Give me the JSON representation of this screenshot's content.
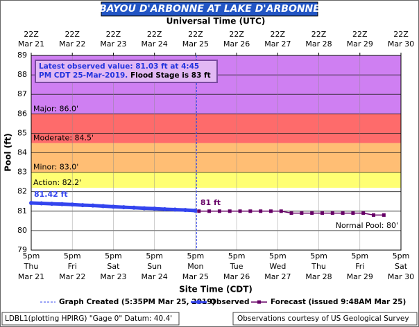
{
  "chart_data": {
    "type": "hydrograph",
    "title": "BAYOU D'ARBONNE AT LAKE D'ARBONNE",
    "x2_label": "Universal Time (UTC)",
    "x_label": "Site Time (CDT)",
    "y_label": "Pool (ft)",
    "xlim": [
      "2019-03-21T17:00",
      "2019-03-30T17:00"
    ],
    "ylim": [
      79,
      89
    ],
    "yticks": [
      79,
      80,
      81,
      82,
      83,
      84,
      85,
      86,
      87,
      88,
      89
    ],
    "grid": true,
    "xticks": [
      {
        "value": "2019-03-21T17:00",
        "label": [
          "5pm",
          "Thu",
          "Mar 21"
        ]
      },
      {
        "value": "2019-03-22T17:00",
        "label": [
          "5pm",
          "Fri",
          "Mar 22"
        ]
      },
      {
        "value": "2019-03-23T17:00",
        "label": [
          "5pm",
          "Sat",
          "Mar 23"
        ]
      },
      {
        "value": "2019-03-24T17:00",
        "label": [
          "5pm",
          "Sun",
          "Mar 24"
        ]
      },
      {
        "value": "2019-03-25T17:00",
        "label": [
          "5pm",
          "Mon",
          "Mar 25"
        ]
      },
      {
        "value": "2019-03-26T17:00",
        "label": [
          "5pm",
          "Tue",
          "Mar 26"
        ]
      },
      {
        "value": "2019-03-27T17:00",
        "label": [
          "5pm",
          "Wed",
          "Mar 27"
        ]
      },
      {
        "value": "2019-03-28T17:00",
        "label": [
          "5pm",
          "Thu",
          "Mar 28"
        ]
      },
      {
        "value": "2019-03-29T17:00",
        "label": [
          "5pm",
          "Fri",
          "Mar 29"
        ]
      },
      {
        "value": "2019-03-30T17:00",
        "label": [
          "5pm",
          "Sat",
          "Mar 30"
        ]
      }
    ],
    "x2ticks": [
      {
        "value": "2019-03-21T17:00",
        "label": [
          "22Z",
          "Mar 21"
        ]
      },
      {
        "value": "2019-03-22T17:00",
        "label": [
          "22Z",
          "Mar 22"
        ]
      },
      {
        "value": "2019-03-23T17:00",
        "label": [
          "22Z",
          "Mar 23"
        ]
      },
      {
        "value": "2019-03-24T17:00",
        "label": [
          "22Z",
          "Mar 24"
        ]
      },
      {
        "value": "2019-03-25T17:00",
        "label": [
          "22Z",
          "Mar 25"
        ]
      },
      {
        "value": "2019-03-26T17:00",
        "label": [
          "22Z",
          "Mar 26"
        ]
      },
      {
        "value": "2019-03-27T17:00",
        "label": [
          "22Z",
          "Mar 27"
        ]
      },
      {
        "value": "2019-03-28T17:00",
        "label": [
          "22Z",
          "Mar 28"
        ]
      },
      {
        "value": "2019-03-29T17:00",
        "label": [
          "22Z",
          "Mar 29"
        ]
      },
      {
        "value": "2019-03-30T17:00",
        "label": [
          "22Z",
          "Mar 30"
        ]
      }
    ],
    "thresholds": [
      {
        "label": "Major: 86.0'",
        "value": 86,
        "color": "#cf7ff2"
      },
      {
        "label": "Moderate: 84.5'",
        "value": 84.5,
        "color": "#fe6b6b"
      },
      {
        "label": "Minor: 83.0'",
        "value": 83,
        "color": "#ffbe74"
      },
      {
        "label": "Action: 82.2'",
        "value": 82.2,
        "color": "#ffff73"
      }
    ],
    "normal_pool": {
      "label": "Normal Pool: 80'",
      "value": 80
    },
    "graph_created": {
      "x": "2019-03-25T17:35",
      "label": "Graph Created (5:35PM Mar 25, 2019)"
    },
    "latest_observed": "Latest observed value: 81.03 ft at 4:45 PM CDT 25-Mar-2019.",
    "flood_stage_note": "Flood Stage is 83 ft",
    "series": [
      {
        "name": "Observed",
        "color": "#3344ee",
        "x": [
          "2019-03-21T17:00",
          "2019-03-21T23:00",
          "2019-03-22T05:00",
          "2019-03-22T11:00",
          "2019-03-22T17:00",
          "2019-03-22T23:00",
          "2019-03-23T05:00",
          "2019-03-23T11:00",
          "2019-03-23T17:00",
          "2019-03-23T23:00",
          "2019-03-24T05:00",
          "2019-03-24T11:00",
          "2019-03-24T17:00",
          "2019-03-24T23:00",
          "2019-03-25T05:00",
          "2019-03-25T11:00",
          "2019-03-25T16:45"
        ],
        "values": [
          81.42,
          81.4,
          81.38,
          81.36,
          81.34,
          81.31,
          81.29,
          81.26,
          81.23,
          81.2,
          81.18,
          81.15,
          81.13,
          81.1,
          81.08,
          81.06,
          81.03
        ],
        "value_labels": [
          "81.42 ft",
          null,
          null,
          null,
          null,
          null,
          null,
          null,
          null,
          null,
          null,
          null,
          null,
          null,
          null,
          null,
          null
        ]
      },
      {
        "name": "Forecast (issued 9:48AM Mar 25)",
        "color": "#660066",
        "x": [
          "2019-03-25T19:00",
          "2019-03-26T01:00",
          "2019-03-26T07:00",
          "2019-03-26T13:00",
          "2019-03-26T19:00",
          "2019-03-27T01:00",
          "2019-03-27T07:00",
          "2019-03-27T13:00",
          "2019-03-27T19:00",
          "2019-03-28T01:00",
          "2019-03-28T07:00",
          "2019-03-28T13:00",
          "2019-03-28T19:00",
          "2019-03-29T01:00",
          "2019-03-29T07:00",
          "2019-03-29T13:00",
          "2019-03-29T19:00",
          "2019-03-30T01:00",
          "2019-03-30T07:00"
        ],
        "values": [
          81,
          81,
          81,
          81,
          81,
          81,
          81,
          81,
          81,
          80.9,
          80.9,
          80.9,
          80.9,
          80.9,
          80.9,
          80.9,
          80.9,
          80.8,
          80.8
        ],
        "value_labels": [
          "81 ft",
          null,
          null,
          null,
          null,
          null,
          null,
          null,
          null,
          null,
          null,
          null,
          null,
          null,
          null,
          null,
          null,
          null,
          null
        ]
      }
    ],
    "footer_left": "LDBL1(plotting HPIRG) \"Gage 0\" Datum: 40.4'",
    "footer_right": "Observations courtesy of US Geological Survey"
  }
}
